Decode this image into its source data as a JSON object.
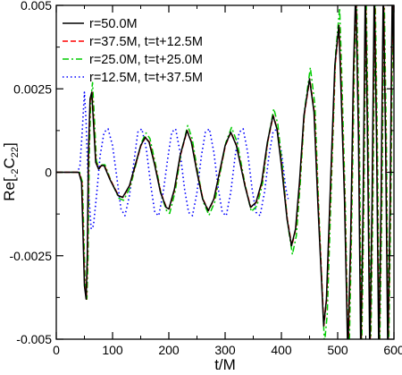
{
  "chart_data": {
    "type": "line",
    "title": "",
    "xlabel": "t/M",
    "ylabel_parts": {
      "base": "Re[",
      "presub": "-2",
      "main": "C",
      "sub": "22",
      "close": "]"
    },
    "xlim": [
      0,
      600
    ],
    "ylim": [
      -0.005,
      0.005
    ],
    "x_ticks": [
      0,
      100,
      200,
      300,
      400,
      500,
      600
    ],
    "x_tick_labels": [
      "0",
      "100",
      "200",
      "300",
      "400",
      "500",
      "600"
    ],
    "y_ticks": [
      -0.005,
      -0.0025,
      0,
      0.0025,
      0.005
    ],
    "y_tick_labels": [
      "-0.005",
      "-0.0025",
      "0",
      "0.0025",
      "0.005"
    ],
    "grid": false,
    "legend_position": "top-left",
    "series": [
      {
        "name": "r=50.0M",
        "color": "#000000",
        "dash": "",
        "width": 1.5,
        "delay": 0
      },
      {
        "name": "r=37.5M, t=t+12.5M",
        "color": "#ff0000",
        "dash": "6 3",
        "width": 1.5,
        "delay": 0.5
      },
      {
        "name": "r=25.0M, t=t+25.0M",
        "color": "#00cc00",
        "dash": "7 3 2 3",
        "width": 1.5,
        "delay": 1.5
      },
      {
        "name": "r=12.5M, t=t+37.5M",
        "color": "#0000ff",
        "dash": "1.5 3",
        "width": 1.6,
        "delay": 0
      }
    ],
    "main_wave_points": [
      [
        0,
        0
      ],
      [
        40,
        0
      ],
      [
        45,
        -0.0003
      ],
      [
        50,
        -0.0034
      ],
      [
        53,
        -0.0038
      ],
      [
        55,
        -0.0025
      ],
      [
        57,
        0.0005
      ],
      [
        60,
        0.0022
      ],
      [
        63,
        0.0024
      ],
      [
        66,
        0.0015
      ],
      [
        70,
        0.0003
      ],
      [
        75,
        0.0001
      ],
      [
        80,
        0.0002
      ],
      [
        85,
        0.0002
      ],
      [
        95,
        -0.0002
      ],
      [
        110,
        -0.0007
      ],
      [
        118,
        -0.00075
      ],
      [
        130,
        -0.0004
      ],
      [
        140,
        0.0002
      ],
      [
        150,
        0.0008
      ],
      [
        158,
        0.00105
      ],
      [
        165,
        0.0009
      ],
      [
        175,
        0.0002
      ],
      [
        185,
        -0.0006
      ],
      [
        195,
        -0.00105
      ],
      [
        200,
        -0.0011
      ],
      [
        210,
        -0.0005
      ],
      [
        220,
        0.0005
      ],
      [
        232,
        0.00125
      ],
      [
        240,
        0.0009
      ],
      [
        250,
        0.0
      ],
      [
        260,
        -0.0008
      ],
      [
        270,
        -0.00115
      ],
      [
        280,
        -0.0008
      ],
      [
        290,
        0.0
      ],
      [
        300,
        0.0008
      ],
      [
        310,
        0.0012
      ],
      [
        320,
        0.0008
      ],
      [
        335,
        -0.0004
      ],
      [
        345,
        -0.00105
      ],
      [
        355,
        -0.0009
      ],
      [
        365,
        -0.0003
      ],
      [
        375,
        0.0009
      ],
      [
        385,
        0.0017
      ],
      [
        392,
        0.0013
      ],
      [
        400,
        0.0002
      ],
      [
        410,
        -0.0014
      ],
      [
        418,
        -0.0022
      ],
      [
        425,
        -0.0017
      ],
      [
        432,
        -0.0003
      ],
      [
        440,
        0.0017
      ],
      [
        450,
        0.0028
      ],
      [
        458,
        0.0018
      ],
      [
        465,
        -0.001
      ],
      [
        475,
        -0.0046
      ],
      [
        480,
        -0.0038
      ],
      [
        488,
        0.0
      ],
      [
        495,
        0.0032
      ],
      [
        502,
        0.0044
      ],
      [
        505,
        0.003
      ],
      [
        512,
        -0.0008
      ],
      [
        518,
        -0.0055
      ],
      [
        523,
        -0.002
      ],
      [
        528,
        0.003
      ],
      [
        532,
        0.0055
      ],
      [
        537,
        0.001
      ],
      [
        541,
        -0.0055
      ],
      [
        545,
        -0.001
      ],
      [
        549,
        0.0055
      ],
      [
        553,
        0.001
      ],
      [
        557,
        -0.0055
      ],
      [
        561,
        -0.001
      ],
      [
        565,
        0.0055
      ],
      [
        569,
        0.001
      ],
      [
        573,
        -0.0055
      ],
      [
        577,
        -0.001
      ],
      [
        581,
        0.0055
      ],
      [
        585,
        0.001
      ],
      [
        589,
        -0.0055
      ],
      [
        593,
        -0.001
      ],
      [
        597,
        0.0055
      ],
      [
        600,
        0.003
      ]
    ],
    "blue_wave_points": [
      [
        0,
        0
      ],
      [
        38,
        0
      ],
      [
        42,
        0.0002
      ],
      [
        46,
        0.0012
      ],
      [
        50,
        0.0024
      ],
      [
        53,
        0.0015
      ],
      [
        57,
        -0.0005
      ],
      [
        62,
        -0.0017
      ],
      [
        66,
        -0.0016
      ],
      [
        72,
        -0.0006
      ],
      [
        78,
        0.0005
      ],
      [
        85,
        0.0012
      ],
      [
        92,
        0.0013
      ],
      [
        100,
        0.0008
      ],
      [
        108,
        -0.0002
      ],
      [
        115,
        -0.0011
      ],
      [
        122,
        -0.0013
      ],
      [
        130,
        -0.0007
      ],
      [
        138,
        0.0003
      ],
      [
        145,
        0.0012
      ],
      [
        152,
        0.0013
      ],
      [
        160,
        0.0007
      ],
      [
        168,
        -0.0004
      ],
      [
        175,
        -0.0012
      ],
      [
        182,
        -0.0013
      ],
      [
        190,
        -0.0006
      ],
      [
        198,
        0.0004
      ],
      [
        205,
        0.0012
      ],
      [
        212,
        0.0013
      ],
      [
        220,
        0.0006
      ],
      [
        228,
        -0.0005
      ],
      [
        235,
        -0.0012
      ],
      [
        242,
        -0.0013
      ],
      [
        250,
        -0.0006
      ],
      [
        258,
        0.0005
      ],
      [
        265,
        0.0012
      ],
      [
        272,
        0.0013
      ],
      [
        280,
        0.0006
      ],
      [
        288,
        -0.0005
      ],
      [
        295,
        -0.0012
      ],
      [
        302,
        -0.0013
      ],
      [
        310,
        -0.0006
      ],
      [
        318,
        0.0005
      ],
      [
        325,
        0.0012
      ],
      [
        332,
        0.0013
      ],
      [
        340,
        0.0006
      ],
      [
        348,
        -0.0005
      ],
      [
        355,
        -0.0012
      ],
      [
        362,
        -0.0013
      ],
      [
        370,
        -0.0006
      ],
      [
        378,
        0.0005
      ],
      [
        385,
        0.0012
      ],
      [
        392,
        0.0013
      ],
      [
        400,
        0.0006
      ],
      [
        408,
        -0.0005
      ],
      [
        412,
        -0.0008
      ]
    ],
    "green_overshoot": 1.12
  }
}
